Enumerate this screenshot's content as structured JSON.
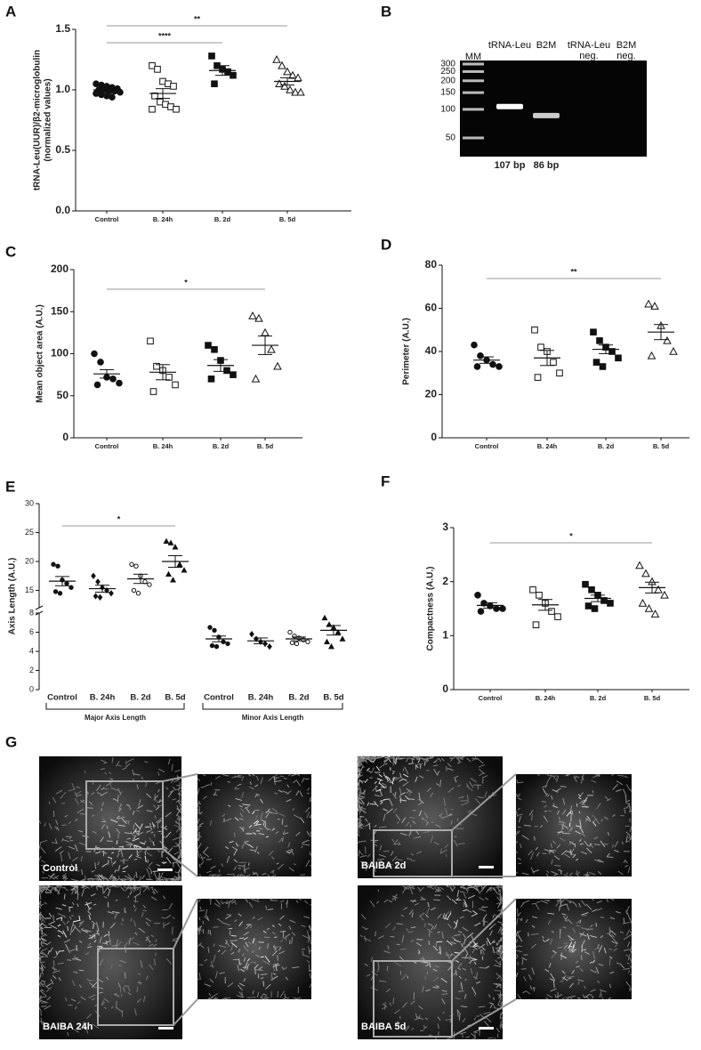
{
  "chart_data": [
    {
      "type": "dotplot",
      "panel": "A",
      "ylabel": [
        "tRNA-Leu(UUR)/β2-microglobulin",
        "(normalized values)"
      ],
      "categories": [
        "Control",
        "B. 24h",
        "B. 2d",
        "B. 5d"
      ],
      "markers": [
        "circle-filled",
        "square-open",
        "square-filled",
        "triangle-open"
      ],
      "points": [
        [
          1.05,
          1.04,
          1.03,
          1.02,
          1.01,
          1.0,
          1.0,
          0.99,
          0.99,
          0.98,
          0.97,
          0.96,
          0.95,
          0.94
        ],
        [
          1.2,
          1.17,
          1.07,
          1.05,
          1.03,
          0.95,
          0.9,
          0.88,
          0.86,
          0.84,
          0.84
        ],
        [
          1.28,
          1.2,
          1.17,
          1.15,
          1.12,
          1.05
        ],
        [
          1.25,
          1.2,
          1.15,
          1.12,
          1.1,
          1.05,
          1.03,
          1.0,
          0.98,
          0.98
        ]
      ],
      "mean": [
        1.0,
        0.97,
        1.16,
        1.07
      ],
      "sem": [
        0.01,
        0.04,
        0.04,
        0.03
      ],
      "ylim": [
        0,
        1.5
      ],
      "yticks": [
        {
          "value": 0,
          "label": "0.0"
        },
        0.5,
        {
          "value": 1,
          "label": "1.0"
        },
        1.5
      ],
      "significance": [
        {
          "from": 0,
          "to": 2,
          "label": "****"
        },
        {
          "from": 0,
          "to": 3,
          "label": "**"
        }
      ]
    },
    {
      "type": "dotplot",
      "panel": "C",
      "ylabel": "Mean object area (A.U.)",
      "categories": [
        "Control",
        "B. 24h",
        "B. 2d",
        "B. 5d"
      ],
      "markers": [
        "circle-filled",
        "square-open",
        "square-filled",
        "triangle-open"
      ],
      "points": [
        [
          100,
          90,
          72,
          70,
          65,
          63
        ],
        [
          115,
          85,
          80,
          72,
          63,
          55
        ],
        [
          110,
          105,
          92,
          80,
          75,
          70
        ],
        [
          145,
          142,
          125,
          105,
          85,
          70
        ]
      ],
      "mean": [
        76,
        78,
        86,
        110
      ],
      "sem": [
        5,
        9,
        7,
        11
      ],
      "ylim": [
        0,
        200
      ],
      "yticks": [
        0,
        50,
        100,
        150,
        200
      ],
      "significance": [
        {
          "from": 0,
          "to": 3,
          "label": "*"
        }
      ]
    },
    {
      "type": "dotplot",
      "panel": "D",
      "ylabel": "Perimeter (A.U.)",
      "categories": [
        "Control",
        "B. 24h",
        "B. 2d",
        "B. 5d"
      ],
      "markers": [
        "circle-filled",
        "square-open",
        "square-filled",
        "triangle-open"
      ],
      "points": [
        [
          43,
          38,
          36,
          34,
          33,
          33
        ],
        [
          50,
          42,
          40,
          35,
          30,
          28
        ],
        [
          49,
          45,
          42,
          40,
          37,
          35,
          33
        ],
        [
          62,
          61,
          52,
          45,
          40,
          38
        ]
      ],
      "mean": [
        36,
        37,
        41,
        49
      ],
      "sem": [
        1.5,
        3.5,
        2,
        3.5
      ],
      "ylim": [
        0,
        80
      ],
      "yticks": [
        0,
        20,
        40,
        60,
        80
      ],
      "significance": [
        {
          "from": 0,
          "to": 3,
          "label": "**"
        }
      ]
    },
    {
      "type": "brokendotplot",
      "panel": "E",
      "ylabel": "Axis Length (A.U.)",
      "categories": [
        "Control",
        "B. 24h",
        "B. 2d",
        "B. 5d",
        "Control",
        "B. 24h",
        "B. 2d",
        "B. 5d"
      ],
      "groups": [
        {
          "name": "Major Axis Length",
          "categories": [
            0,
            1,
            2,
            3
          ]
        },
        {
          "name": "Minor Axis Length",
          "categories": [
            4,
            5,
            6,
            7
          ]
        }
      ],
      "markers": [
        "circle-filled",
        "diamond-filled",
        "circle-open",
        "triangle-filled",
        "circle-filled",
        "diamond-filled",
        "circle-open",
        "triangle-filled"
      ],
      "points": [
        [
          19.5,
          19.2,
          16.8,
          16.2,
          15.5,
          14.8,
          14.5
        ],
        [
          17.5,
          16.5,
          15.5,
          15.0,
          14.5,
          14.0,
          13.8
        ],
        [
          19.5,
          19.2,
          17.5,
          16.5,
          16.0,
          15.0,
          14.5
        ],
        [
          23.5,
          23.2,
          22.5,
          19.5,
          18.5,
          17.8,
          16.8
        ],
        [
          6.5,
          6.2,
          5.5,
          5.0,
          4.8,
          4.6,
          4.5
        ],
        [
          5.8,
          5.3,
          5.0,
          4.8,
          4.5
        ],
        [
          6.0,
          5.6,
          5.4,
          5.2,
          5.0,
          4.9,
          4.8
        ],
        [
          7.5,
          6.8,
          6.5,
          6.0,
          5.3,
          5.0,
          4.5
        ]
      ],
      "mean": [
        16.6,
        15.3,
        17,
        20,
        5.3,
        5.1,
        5.3,
        6.2
      ],
      "sem": [
        0.8,
        0.6,
        0.8,
        1,
        0.3,
        0.3,
        0.2,
        0.5
      ],
      "ylim_lower": [
        0,
        8
      ],
      "yticks_lower": [
        0,
        2,
        4,
        6,
        8
      ],
      "ylim_upper": [
        12,
        30
      ],
      "yticks_upper": [
        15,
        20,
        25,
        30
      ],
      "significance": [
        {
          "from": 0,
          "to": 3,
          "label": "*"
        }
      ]
    },
    {
      "type": "dotplot",
      "panel": "F",
      "ylabel": "Compactness (A.U.)",
      "categories": [
        "Control",
        "B. 24h",
        "B. 2d",
        "B. 5d"
      ],
      "markers": [
        "circle-filled",
        "square-open",
        "square-filled",
        "triangle-open"
      ],
      "points": [
        [
          1.75,
          1.6,
          1.55,
          1.5,
          1.5,
          1.45
        ],
        [
          1.85,
          1.75,
          1.6,
          1.45,
          1.35,
          1.2
        ],
        [
          1.95,
          1.85,
          1.75,
          1.65,
          1.6,
          1.55,
          1.5
        ],
        [
          2.3,
          2.15,
          2.0,
          1.85,
          1.75,
          1.6,
          1.5,
          1.4
        ]
      ],
      "mean": [
        1.56,
        1.57,
        1.69,
        1.89
      ],
      "sem": [
        0.05,
        0.1,
        0.06,
        0.1
      ],
      "ylim": [
        0,
        3
      ],
      "yticks": [
        0,
        1,
        2,
        3
      ],
      "significance": [
        {
          "from": 0,
          "to": 3,
          "label": "*"
        }
      ]
    }
  ],
  "gel": {
    "panel": "B",
    "lanes": [
      [
        "MM"
      ],
      [
        "tRNA-Leu"
      ],
      [
        "B2M"
      ],
      [
        "tRNA-Leu",
        "neg."
      ],
      [
        "B2M",
        "neg."
      ]
    ],
    "ladder": [
      300,
      250,
      200,
      150,
      100,
      50
    ],
    "bands": [
      {
        "lane": 1,
        "value": 107,
        "label": "107 bp"
      },
      {
        "lane": 2,
        "value": 86,
        "label": "86 bp"
      }
    ]
  },
  "images": {
    "panel": "G",
    "items": [
      "Control",
      "BAIBA 2d",
      "BAIBA 24h",
      "BAIBA 5d"
    ]
  }
}
